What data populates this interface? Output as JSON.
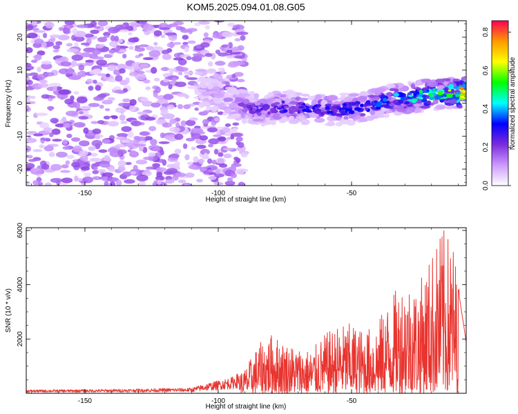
{
  "page": {
    "title": "KOM5.2025.094.01.08.G05"
  },
  "chart_data": [
    {
      "type": "heatmap",
      "title": "KOM5.2025.094.01.08.G05",
      "xlabel": "Height of straight line (km)",
      "ylabel": "Frequency (Hz)",
      "xlim": [
        -172,
        -7
      ],
      "ylim": [
        -25,
        25
      ],
      "xticks": [
        -150,
        -100,
        -50
      ],
      "yticks": [
        -20,
        -10,
        0,
        10,
        20
      ],
      "colorbar": {
        "label": "Normalized spectral amplitude",
        "range": [
          0,
          0.86
        ],
        "ticks": [
          0.0,
          0.2,
          0.4,
          0.6,
          0.8
        ],
        "colors": [
          "#ffffff",
          "#cc99ff",
          "#7a2bdc",
          "#0000ff",
          "#00ffff",
          "#00ff00",
          "#ffff00",
          "#ff9900",
          "#ff0055"
        ]
      },
      "features": {
        "noise_band": {
          "x_range": [
            -172,
            -90
          ],
          "freq_range": [
            -25,
            25
          ],
          "amplitude": 0.08
        },
        "signal_band": {
          "x": [
            -107,
            -95,
            -85,
            -75,
            -65,
            -55,
            -45,
            -35,
            -25,
            -15,
            -7
          ],
          "center_freq": [
            4,
            0,
            -2,
            -1,
            -2,
            -2,
            -1,
            1,
            2,
            3,
            3
          ],
          "peak_amplitude": [
            0.15,
            0.2,
            0.28,
            0.3,
            0.32,
            0.33,
            0.35,
            0.4,
            0.5,
            0.6,
            0.86
          ]
        }
      }
    },
    {
      "type": "line",
      "xlabel": "Height of straight line (km)",
      "ylabel": "SNR (10 * v/v)",
      "xlim": [
        -172,
        -7
      ],
      "ylim": [
        0,
        6100
      ],
      "xticks": [
        -150,
        -100,
        -50
      ],
      "yticks": [
        2000,
        4000,
        6000
      ],
      "color": "#e8342f",
      "series": [
        {
          "envelope_x": [
            -172,
            -140,
            -110,
            -105,
            -95,
            -90,
            -85,
            -80,
            -75,
            -70,
            -65,
            -60,
            -55,
            -50,
            -45,
            -40,
            -35,
            -30,
            -25,
            -20,
            -16,
            -12,
            -7
          ],
          "envelope_y": [
            130,
            150,
            200,
            350,
            600,
            900,
            1800,
            2200,
            1900,
            1700,
            1600,
            2200,
            2500,
            2600,
            2300,
            2700,
            3600,
            4300,
            4000,
            5200,
            6100,
            5700,
            2100
          ]
        }
      ]
    }
  ]
}
